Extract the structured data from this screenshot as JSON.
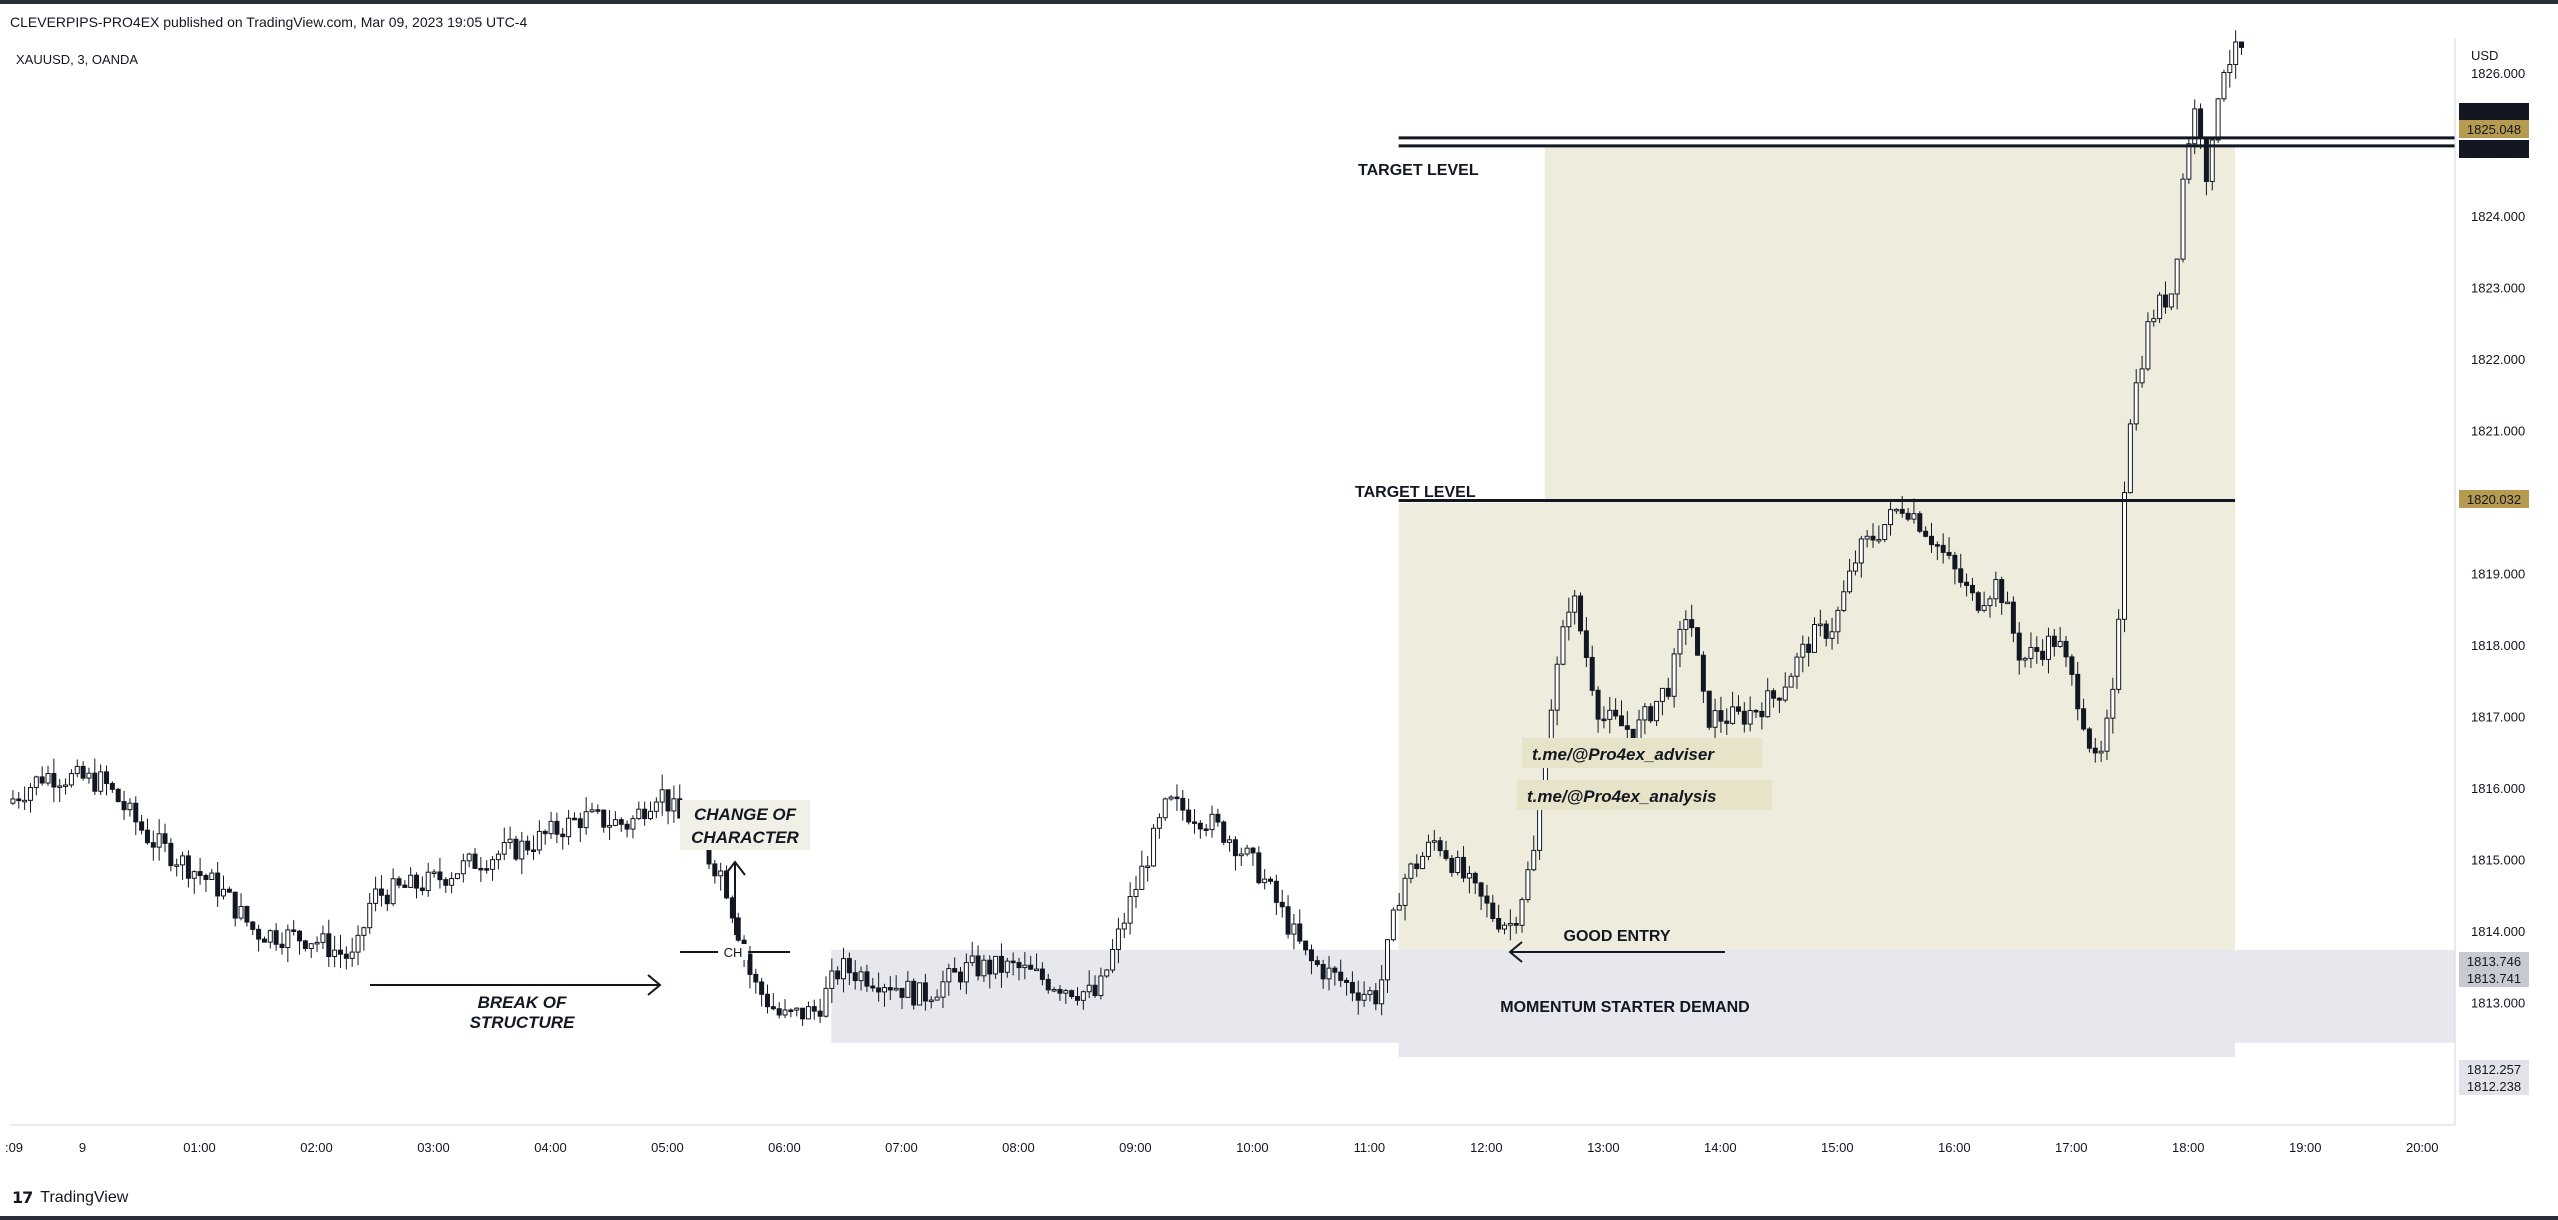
{
  "header": {
    "published": "CLEVERPIPS-PRO4EX published on TradingView.com, Mar 09, 2023 19:05 UTC-4",
    "symbol": "XAUUSD, 3, OANDA"
  },
  "footer": {
    "logo": "17",
    "brand": "TradingView"
  },
  "colors": {
    "candle": "#131722",
    "target_zone": "#eeecdc",
    "demand_zone": "#e6e8ee",
    "gold_badge": "#b59a50",
    "dark_badge": "#131722",
    "gray_badge": "#c7cad3"
  },
  "chart_data": {
    "type": "candlestick",
    "title": "XAUUSD, 3, OANDA",
    "y_axis": {
      "label": "USD",
      "min": 1811.3,
      "max": 1826.5,
      "ticks": [
        "1813.000",
        "1814.000",
        "1815.000",
        "1816.000",
        "1817.000",
        "1818.000",
        "1819.000",
        "1820.000",
        "1821.000",
        "1822.000",
        "1823.000",
        "1824.000",
        "1825.000",
        "1826.000"
      ]
    },
    "x_axis": {
      "ticks": [
        ":09",
        "9",
        "01:00",
        "02:00",
        "03:00",
        "04:00",
        "05:00",
        "06:00",
        "07:00",
        "08:00",
        "09:00",
        "10:00",
        "11:00",
        "12:00",
        "13:00",
        "14:00",
        "15:00",
        "16:00",
        "17:00",
        "18:00",
        "19:00",
        "20:00"
      ],
      "t_min": -0.62,
      "t_max": 20.28
    },
    "price_path": [
      {
        "t": -0.62,
        "p": 1815.8
      },
      {
        "t": -0.3,
        "p": 1816.2
      },
      {
        "t": 0.2,
        "p": 1816.1
      },
      {
        "t": 0.6,
        "p": 1815.3
      },
      {
        "t": 0.95,
        "p": 1814.9
      },
      {
        "t": 1.2,
        "p": 1814.6
      },
      {
        "t": 1.5,
        "p": 1814.0
      },
      {
        "t": 2.0,
        "p": 1813.9
      },
      {
        "t": 2.35,
        "p": 1813.6
      },
      {
        "t": 2.5,
        "p": 1814.5
      },
      {
        "t": 3.0,
        "p": 1814.7
      },
      {
        "t": 3.4,
        "p": 1815.0
      },
      {
        "t": 3.8,
        "p": 1815.2
      },
      {
        "t": 4.3,
        "p": 1815.6
      },
      {
        "t": 4.7,
        "p": 1815.5
      },
      {
        "t": 4.95,
        "p": 1816.0
      },
      {
        "t": 5.2,
        "p": 1815.4
      },
      {
        "t": 5.5,
        "p": 1814.8
      },
      {
        "t": 5.75,
        "p": 1813.3
      },
      {
        "t": 6.0,
        "p": 1812.8
      },
      {
        "t": 6.3,
        "p": 1812.9
      },
      {
        "t": 6.5,
        "p": 1813.5
      },
      {
        "t": 6.9,
        "p": 1813.3
      },
      {
        "t": 7.2,
        "p": 1813.1
      },
      {
        "t": 7.6,
        "p": 1813.5
      },
      {
        "t": 8.0,
        "p": 1813.5
      },
      {
        "t": 8.3,
        "p": 1813.3
      },
      {
        "t": 8.7,
        "p": 1813.1
      },
      {
        "t": 9.0,
        "p": 1814.5
      },
      {
        "t": 9.3,
        "p": 1815.8
      },
      {
        "t": 9.6,
        "p": 1815.6
      },
      {
        "t": 9.85,
        "p": 1815.3
      },
      {
        "t": 10.1,
        "p": 1814.8
      },
      {
        "t": 10.5,
        "p": 1813.6
      },
      {
        "t": 10.9,
        "p": 1813.2
      },
      {
        "t": 11.1,
        "p": 1813.1
      },
      {
        "t": 11.3,
        "p": 1814.7
      },
      {
        "t": 11.6,
        "p": 1815.3
      },
      {
        "t": 11.9,
        "p": 1814.6
      },
      {
        "t": 12.1,
        "p": 1814.2
      },
      {
        "t": 12.25,
        "p": 1814.1
      },
      {
        "t": 12.45,
        "p": 1815.2
      },
      {
        "t": 12.55,
        "p": 1816.9
      },
      {
        "t": 12.75,
        "p": 1818.8
      },
      {
        "t": 13.0,
        "p": 1817.0
      },
      {
        "t": 13.3,
        "p": 1816.8
      },
      {
        "t": 13.6,
        "p": 1817.5
      },
      {
        "t": 13.75,
        "p": 1818.6
      },
      {
        "t": 13.9,
        "p": 1817.0
      },
      {
        "t": 14.2,
        "p": 1817.0
      },
      {
        "t": 14.5,
        "p": 1817.3
      },
      {
        "t": 14.8,
        "p": 1818.1
      },
      {
        "t": 15.0,
        "p": 1818.3
      },
      {
        "t": 15.2,
        "p": 1819.3
      },
      {
        "t": 15.6,
        "p": 1820.0
      },
      {
        "t": 15.8,
        "p": 1819.6
      },
      {
        "t": 16.0,
        "p": 1819.1
      },
      {
        "t": 16.2,
        "p": 1818.6
      },
      {
        "t": 16.4,
        "p": 1818.9
      },
      {
        "t": 16.6,
        "p": 1817.8
      },
      {
        "t": 16.9,
        "p": 1818.1
      },
      {
        "t": 17.1,
        "p": 1817.2
      },
      {
        "t": 17.25,
        "p": 1816.2
      },
      {
        "t": 17.4,
        "p": 1817.4
      },
      {
        "t": 17.5,
        "p": 1821.0
      },
      {
        "t": 17.7,
        "p": 1822.6
      },
      {
        "t": 17.9,
        "p": 1823.0
      },
      {
        "t": 18.0,
        "p": 1824.9
      },
      {
        "t": 18.1,
        "p": 1825.6
      },
      {
        "t": 18.2,
        "p": 1824.4
      },
      {
        "t": 18.3,
        "p": 1826.1
      },
      {
        "t": 18.45,
        "p": 1826.3
      }
    ],
    "levels": [
      {
        "name": "Upper target line",
        "price": 1825.104,
        "t_start": 11.25,
        "t_end": 20.28
      },
      {
        "name": "Upper target line 2",
        "price": 1824.992,
        "t_start": 11.25,
        "t_end": 20.28
      },
      {
        "name": "Lower target line",
        "price": 1820.032,
        "t_start": 11.25,
        "t_end": 18.4
      }
    ],
    "zones": [
      {
        "name": "target-zone-upper",
        "p_top": 1825.0,
        "p_bottom": 1813.75,
        "t_start": 12.5,
        "t_end": 18.4
      },
      {
        "name": "target-zone-lower",
        "p_top": 1820.0,
        "p_bottom": 1813.75,
        "t_start": 11.25,
        "t_end": 12.5
      },
      {
        "name": "demand-zone-left",
        "p_top": 1813.75,
        "p_bottom": 1812.45,
        "t_start": 6.4,
        "t_end": 11.25
      },
      {
        "name": "demand-zone-right",
        "p_top": 1813.75,
        "p_bottom": 1812.25,
        "t_start": 11.25,
        "t_end": 18.4
      },
      {
        "name": "demand-zone-right-ext",
        "p_top": 1813.746,
        "p_bottom": 1812.45,
        "t_start": 18.4,
        "t_end": 20.28
      }
    ],
    "price_badges": [
      {
        "value": "1825.104",
        "price": 1825.104,
        "style": "dark"
      },
      {
        "value": "1825.048",
        "price": 1825.048,
        "style": "gold"
      },
      {
        "value": "1824.992",
        "price": 1824.992,
        "style": "dark"
      },
      {
        "value": "1820.032",
        "price": 1820.032,
        "style": "gold"
      },
      {
        "value": "1813.746",
        "price": 1813.746,
        "style": "gray"
      },
      {
        "value": "1813.741",
        "price": 1813.741,
        "style": "gray"
      },
      {
        "value": "1812.257",
        "price": 1812.257,
        "style": "light"
      },
      {
        "value": "1812.238",
        "price": 1812.238,
        "style": "light"
      }
    ],
    "annotations": {
      "target_level_upper": "TARGET LEVEL",
      "target_level_lower": "TARGET LEVEL",
      "change_of_character": [
        "CHANGE OF",
        "CHARACTER"
      ],
      "break_of_structure": [
        "BREAK OF",
        "STRUCTURE"
      ],
      "ch_label": "CH",
      "good_entry": "GOOD ENTRY",
      "momentum_demand": "MOMENTUM STARTER DEMAND",
      "watermark_1": "t.me/@Pro4ex_adviser",
      "watermark_2": "t.me/@Pro4ex_analysis"
    }
  }
}
